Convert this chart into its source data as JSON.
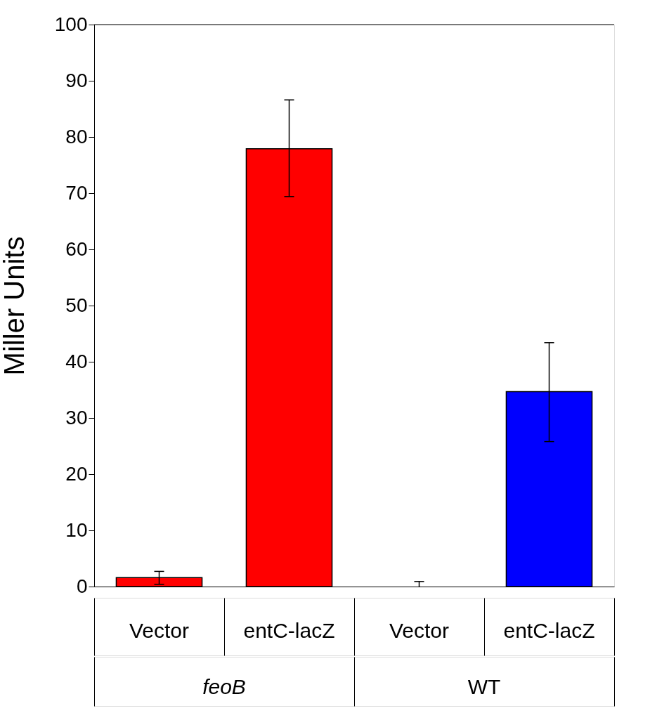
{
  "chart_data": {
    "type": "bar",
    "ylabel": "Miller Units",
    "categories": [
      "Vector",
      "entC-lacZ",
      "Vector",
      "entC-lacZ"
    ],
    "values": [
      1.6,
      77.9,
      0,
      34.7
    ],
    "colors": [
      "#ff0000",
      "#ff0000",
      "#0000ff",
      "#0000ff"
    ],
    "errors": [
      [
        0.4,
        2.7
      ],
      [
        69.4,
        86.6
      ],
      0.9,
      [
        25.8,
        43.4
      ]
    ],
    "annotations": [
      "feoB",
      "WT"
    ],
    "ylim": [
      0,
      100
    ],
    "yticks": [
      0,
      10,
      20,
      30,
      40,
      50,
      60,
      70,
      80,
      90,
      100
    ],
    "grid": false
  }
}
